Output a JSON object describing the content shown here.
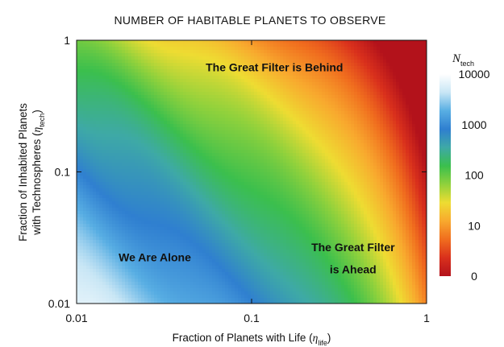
{
  "chart_data": {
    "type": "heatmap",
    "title": "NUMBER OF HABITABLE PLANETS TO OBSERVE",
    "xlabel": {
      "main": "Fraction of Planets with Life (",
      "symbol": "η",
      "sub": "life",
      "tail": ")"
    },
    "ylabel": {
      "line1": "Fraction of Inhabited Planets",
      "line2_main": "with Technospheres (",
      "symbol": "η",
      "sub": "tech",
      "tail": ")"
    },
    "x_scale": "log",
    "y_scale": "log",
    "xlim": [
      0.01,
      1
    ],
    "ylim": [
      0.01,
      1
    ],
    "x_ticks": [
      {
        "value": 0.01,
        "label": "0.01"
      },
      {
        "value": 0.1,
        "label": "0.1"
      },
      {
        "value": 1,
        "label": "1"
      }
    ],
    "y_ticks": [
      {
        "value": 0.01,
        "label": "0.01"
      },
      {
        "value": 0.1,
        "label": "0.1"
      },
      {
        "value": 1,
        "label": "1"
      }
    ],
    "colorbar": {
      "label_main": "N",
      "label_sub": "tech",
      "ticks": [
        "10000",
        "1000",
        "100",
        "10",
        "0"
      ],
      "colors": [
        "#ffffff",
        "#c8e6f5",
        "#58aee3",
        "#2f7fd0",
        "#3ea9a6",
        "#3bbf4d",
        "#8fd13c",
        "#eedc32",
        "#f8a92e",
        "#f06d1e",
        "#d9301c",
        "#b3121b"
      ]
    },
    "color_meaning": "color encodes N_tech (number of habitable planets to observe) as a function of eta_life (x) and eta_tech (y)",
    "annotations": [
      {
        "text": "The Great Filter is Behind",
        "x": 0.135,
        "y": 0.58
      },
      {
        "text": "We Are Alone",
        "x": 0.028,
        "y": 0.021
      },
      {
        "text": "The Great Filter",
        "x": 0.38,
        "y": 0.025
      },
      {
        "text": "is Ahead",
        "x": 0.38,
        "y": 0.017
      }
    ]
  }
}
